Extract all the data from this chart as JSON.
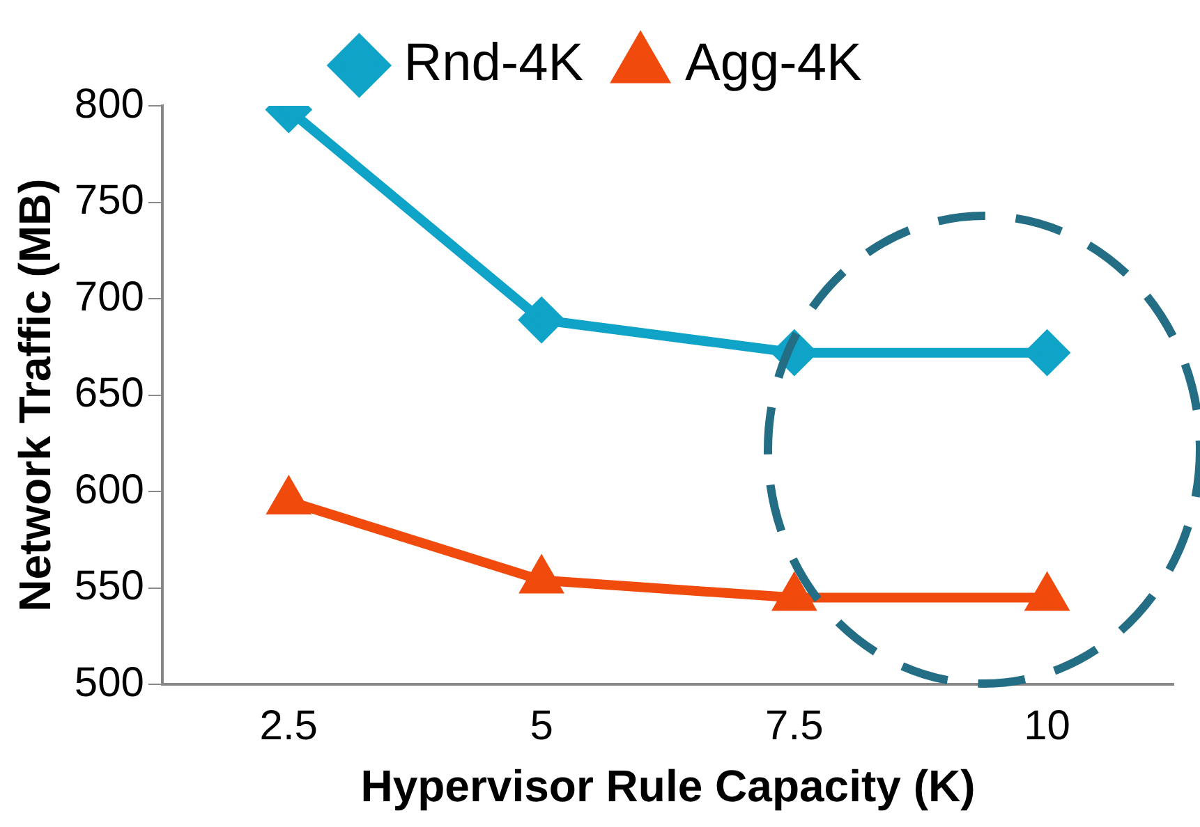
{
  "chart_data": {
    "type": "line",
    "xlabel": "Hypervisor Rule Capacity (K)",
    "ylabel": "Network Traffic (MB)",
    "categories": [
      "2.5",
      "5",
      "7.5",
      "10"
    ],
    "series": [
      {
        "name": "Rnd-4K",
        "color": "#0fa3c8",
        "values": [
          798,
          689,
          672,
          672
        ],
        "marker": "diamond"
      },
      {
        "name": "Agg-4K",
        "color": "#f04a0c",
        "values": [
          595,
          554,
          545,
          545
        ],
        "marker": "triangle"
      }
    ],
    "ylim": [
      500,
      800
    ],
    "yticks": [
      500,
      550,
      600,
      650,
      700,
      750,
      800
    ],
    "grid": false,
    "legend": "top",
    "line_style": "solid"
  }
}
